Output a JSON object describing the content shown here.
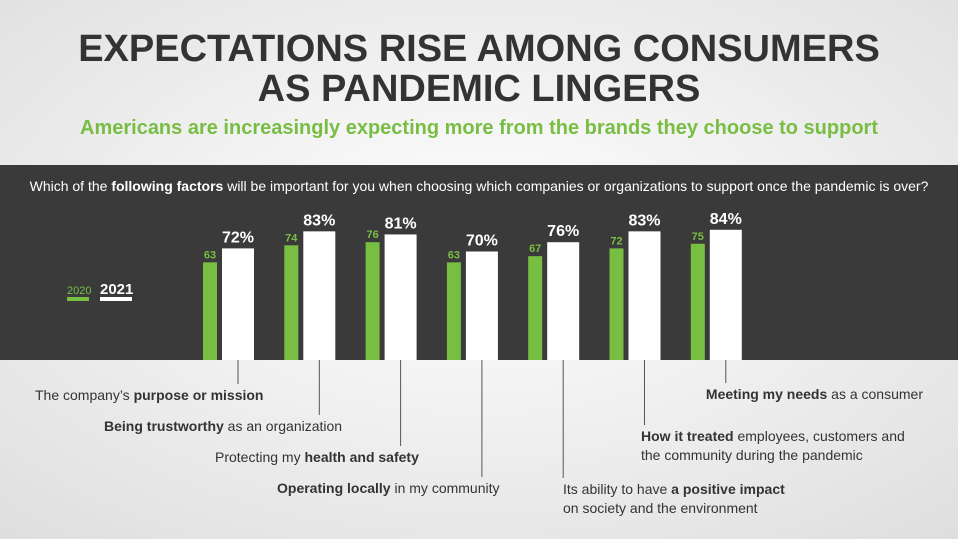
{
  "chart_data": {
    "type": "bar",
    "title": [
      "EXPECTATIONS RISE AMONG CONSUMERS",
      "AS PANDEMIC LINGERS"
    ],
    "subtitle": "Americans are increasingly expecting more from the brands they choose to support",
    "question": [
      {
        "text": "Which of the ",
        "bold": false
      },
      {
        "text": "following factors",
        "bold": true
      },
      {
        "text": " will be important for you when choosing which companies or organizations to support once the pandemic is over?",
        "bold": false
      }
    ],
    "categories": [
      [
        [
          {
            "text": "The company’s ",
            "bold": false
          },
          {
            "text": "purpose or mission",
            "bold": true
          }
        ]
      ],
      [
        [
          {
            "text": "Being trustworthy",
            "bold": true
          },
          {
            "text": " as an organization",
            "bold": false
          }
        ]
      ],
      [
        [
          {
            "text": "Protecting my ",
            "bold": false
          },
          {
            "text": "health and safety",
            "bold": true
          }
        ]
      ],
      [
        [
          {
            "text": "Operating locally",
            "bold": true
          },
          {
            "text": " in my community",
            "bold": false
          }
        ]
      ],
      [
        [
          {
            "text": "Its ability to have ",
            "bold": false
          },
          {
            "text": "a positive impact",
            "bold": true
          }
        ],
        [
          {
            "text": "on society and the environment",
            "bold": false
          }
        ]
      ],
      [
        [
          {
            "text": "How it treated",
            "bold": true
          },
          {
            "text": " employees, customers and",
            "bold": false
          }
        ],
        [
          {
            "text": "the community during the pandemic",
            "bold": false
          }
        ]
      ],
      [
        [
          {
            "text": "Meeting my needs",
            "bold": true
          },
          {
            "text": " as a consumer",
            "bold": false
          }
        ]
      ]
    ],
    "series": [
      {
        "name": "2020",
        "color": "#78be43",
        "values": [
          63,
          74,
          76,
          63,
          67,
          72,
          75
        ]
      },
      {
        "name": "2021",
        "color": "#ffffff",
        "values": [
          72,
          83,
          81,
          70,
          76,
          83,
          84
        ],
        "value_labels": [
          "72%",
          "83%",
          "81%",
          "70%",
          "76%",
          "83%",
          "84%"
        ]
      }
    ],
    "ylim": [
      0,
      100
    ]
  }
}
